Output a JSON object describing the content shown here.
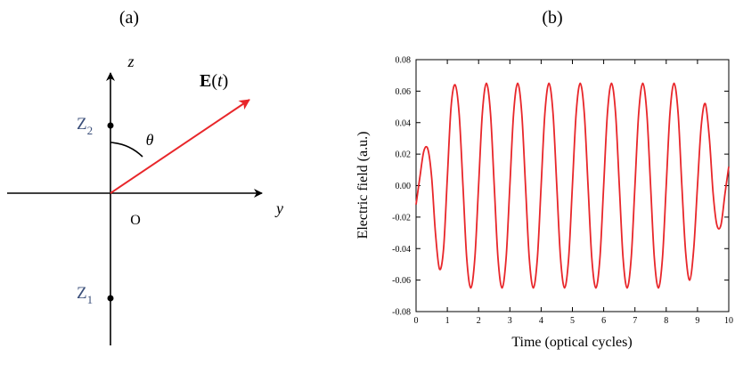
{
  "panel_a": {
    "label": "(a)",
    "axis_z": "z",
    "axis_y": "y",
    "origin": "O",
    "vector_label_bold": "E",
    "vector_label_paren_open": "(",
    "vector_label_var": "t",
    "vector_label_paren_close": ")",
    "angle_label": "θ",
    "point_upper": {
      "base": "Z",
      "sub": "2"
    },
    "point_lower": {
      "base": "Z",
      "sub": "1"
    },
    "colors": {
      "vector": "#e8262a",
      "point_label": "#3b4f7a",
      "axes": "#000000"
    }
  },
  "panel_b": {
    "label": "(b)"
  },
  "chart_data": {
    "type": "line",
    "xlabel": "Time (optical cycles)",
    "ylabel": "Electric field (a.u.)",
    "xlim": [
      0,
      10
    ],
    "ylim": [
      -0.08,
      0.08
    ],
    "xticks": [
      0,
      1,
      2,
      3,
      4,
      5,
      6,
      7,
      8,
      9,
      10
    ],
    "xtick_labels": [
      "0",
      "1",
      "2",
      "3",
      "4",
      "5",
      "6",
      "7",
      "8",
      "9",
      "10"
    ],
    "yticks": [
      -0.08,
      -0.06,
      -0.04,
      -0.02,
      0.0,
      0.02,
      0.04,
      0.06,
      0.08
    ],
    "ytick_labels": [
      "-0.08",
      "-0.06",
      "-0.04",
      "-0.02",
      "0.00",
      "0.02",
      "0.04",
      "0.06",
      "0.08"
    ],
    "grid": false,
    "line_color": "#e8262a",
    "series": [
      {
        "x": [
          0,
          0.12,
          0.25,
          0.38,
          0.5,
          0.62,
          0.75,
          0.88,
          1.0,
          1.12,
          1.25,
          1.38,
          1.5,
          1.62,
          1.75,
          1.88,
          2.0,
          2.12,
          2.25,
          2.38,
          2.5,
          2.62,
          2.75,
          2.88,
          3.0,
          3.12,
          3.25,
          3.38,
          3.5,
          3.62,
          3.75,
          3.88,
          4.0,
          4.12,
          4.25,
          4.38,
          4.5,
          4.62,
          4.75,
          4.88,
          5.0,
          5.12,
          5.25,
          5.38,
          5.5,
          5.62,
          5.75,
          5.88,
          6.0,
          6.12,
          6.25,
          6.38,
          6.5,
          6.62,
          6.75,
          6.88,
          7.0,
          7.12,
          7.25,
          7.38,
          7.5,
          7.62,
          7.75,
          7.88,
          8.0,
          8.12,
          8.25,
          8.38,
          8.5,
          8.62,
          8.75,
          8.88,
          9.0,
          9.12,
          9.25,
          9.38,
          9.5,
          9.62,
          9.75,
          9.88,
          10.0
        ],
        "y": [
          -0.012,
          0.005,
          0.022,
          0.023,
          0.005,
          -0.03,
          -0.053,
          -0.04,
          0.005,
          0.05,
          0.064,
          0.045,
          0.0,
          -0.046,
          -0.065,
          -0.046,
          0.0,
          0.046,
          0.065,
          0.046,
          0.0,
          -0.046,
          -0.065,
          -0.046,
          0.0,
          0.046,
          0.065,
          0.046,
          0.0,
          -0.046,
          -0.065,
          -0.046,
          0.0,
          0.046,
          0.065,
          0.046,
          0.0,
          -0.046,
          -0.065,
          -0.046,
          0.0,
          0.046,
          0.065,
          0.046,
          0.0,
          -0.046,
          -0.065,
          -0.046,
          0.0,
          0.046,
          0.065,
          0.046,
          0.0,
          -0.046,
          -0.065,
          -0.046,
          0.0,
          0.046,
          0.065,
          0.046,
          0.0,
          -0.046,
          -0.065,
          -0.046,
          0.0,
          0.046,
          0.065,
          0.046,
          0.0,
          -0.042,
          -0.06,
          -0.04,
          0.0,
          0.038,
          0.052,
          0.03,
          -0.005,
          -0.025,
          -0.025,
          -0.005,
          0.012
        ]
      }
    ]
  }
}
